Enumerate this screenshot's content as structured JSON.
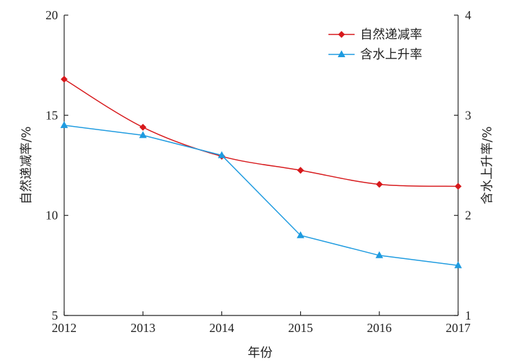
{
  "chart_data": {
    "type": "line",
    "xlabel": "年份",
    "ylabel_left": "自然递减率/%",
    "ylabel_right": "含水上升率/%",
    "x": [
      2012,
      2013,
      2014,
      2015,
      2016,
      2017
    ],
    "xlim": [
      2012,
      2017
    ],
    "ylim_left": [
      5,
      20
    ],
    "ylim_right": [
      1,
      4
    ],
    "yticks_left": [
      5,
      10,
      15,
      20
    ],
    "yticks_right": [
      1,
      2,
      3,
      4
    ],
    "grid": false,
    "legend_position": "top-right",
    "series": [
      {
        "name": "自然递减率",
        "axis": "left",
        "color": "#d7191c",
        "marker": "diamond",
        "smooth": true,
        "values": [
          16.8,
          14.4,
          12.95,
          12.25,
          11.55,
          11.45
        ]
      },
      {
        "name": "含水上升率",
        "axis": "right",
        "color": "#1e9be0",
        "marker": "triangle",
        "smooth": false,
        "values": [
          2.9,
          2.8,
          2.6,
          1.8,
          1.6,
          1.5
        ]
      }
    ]
  }
}
